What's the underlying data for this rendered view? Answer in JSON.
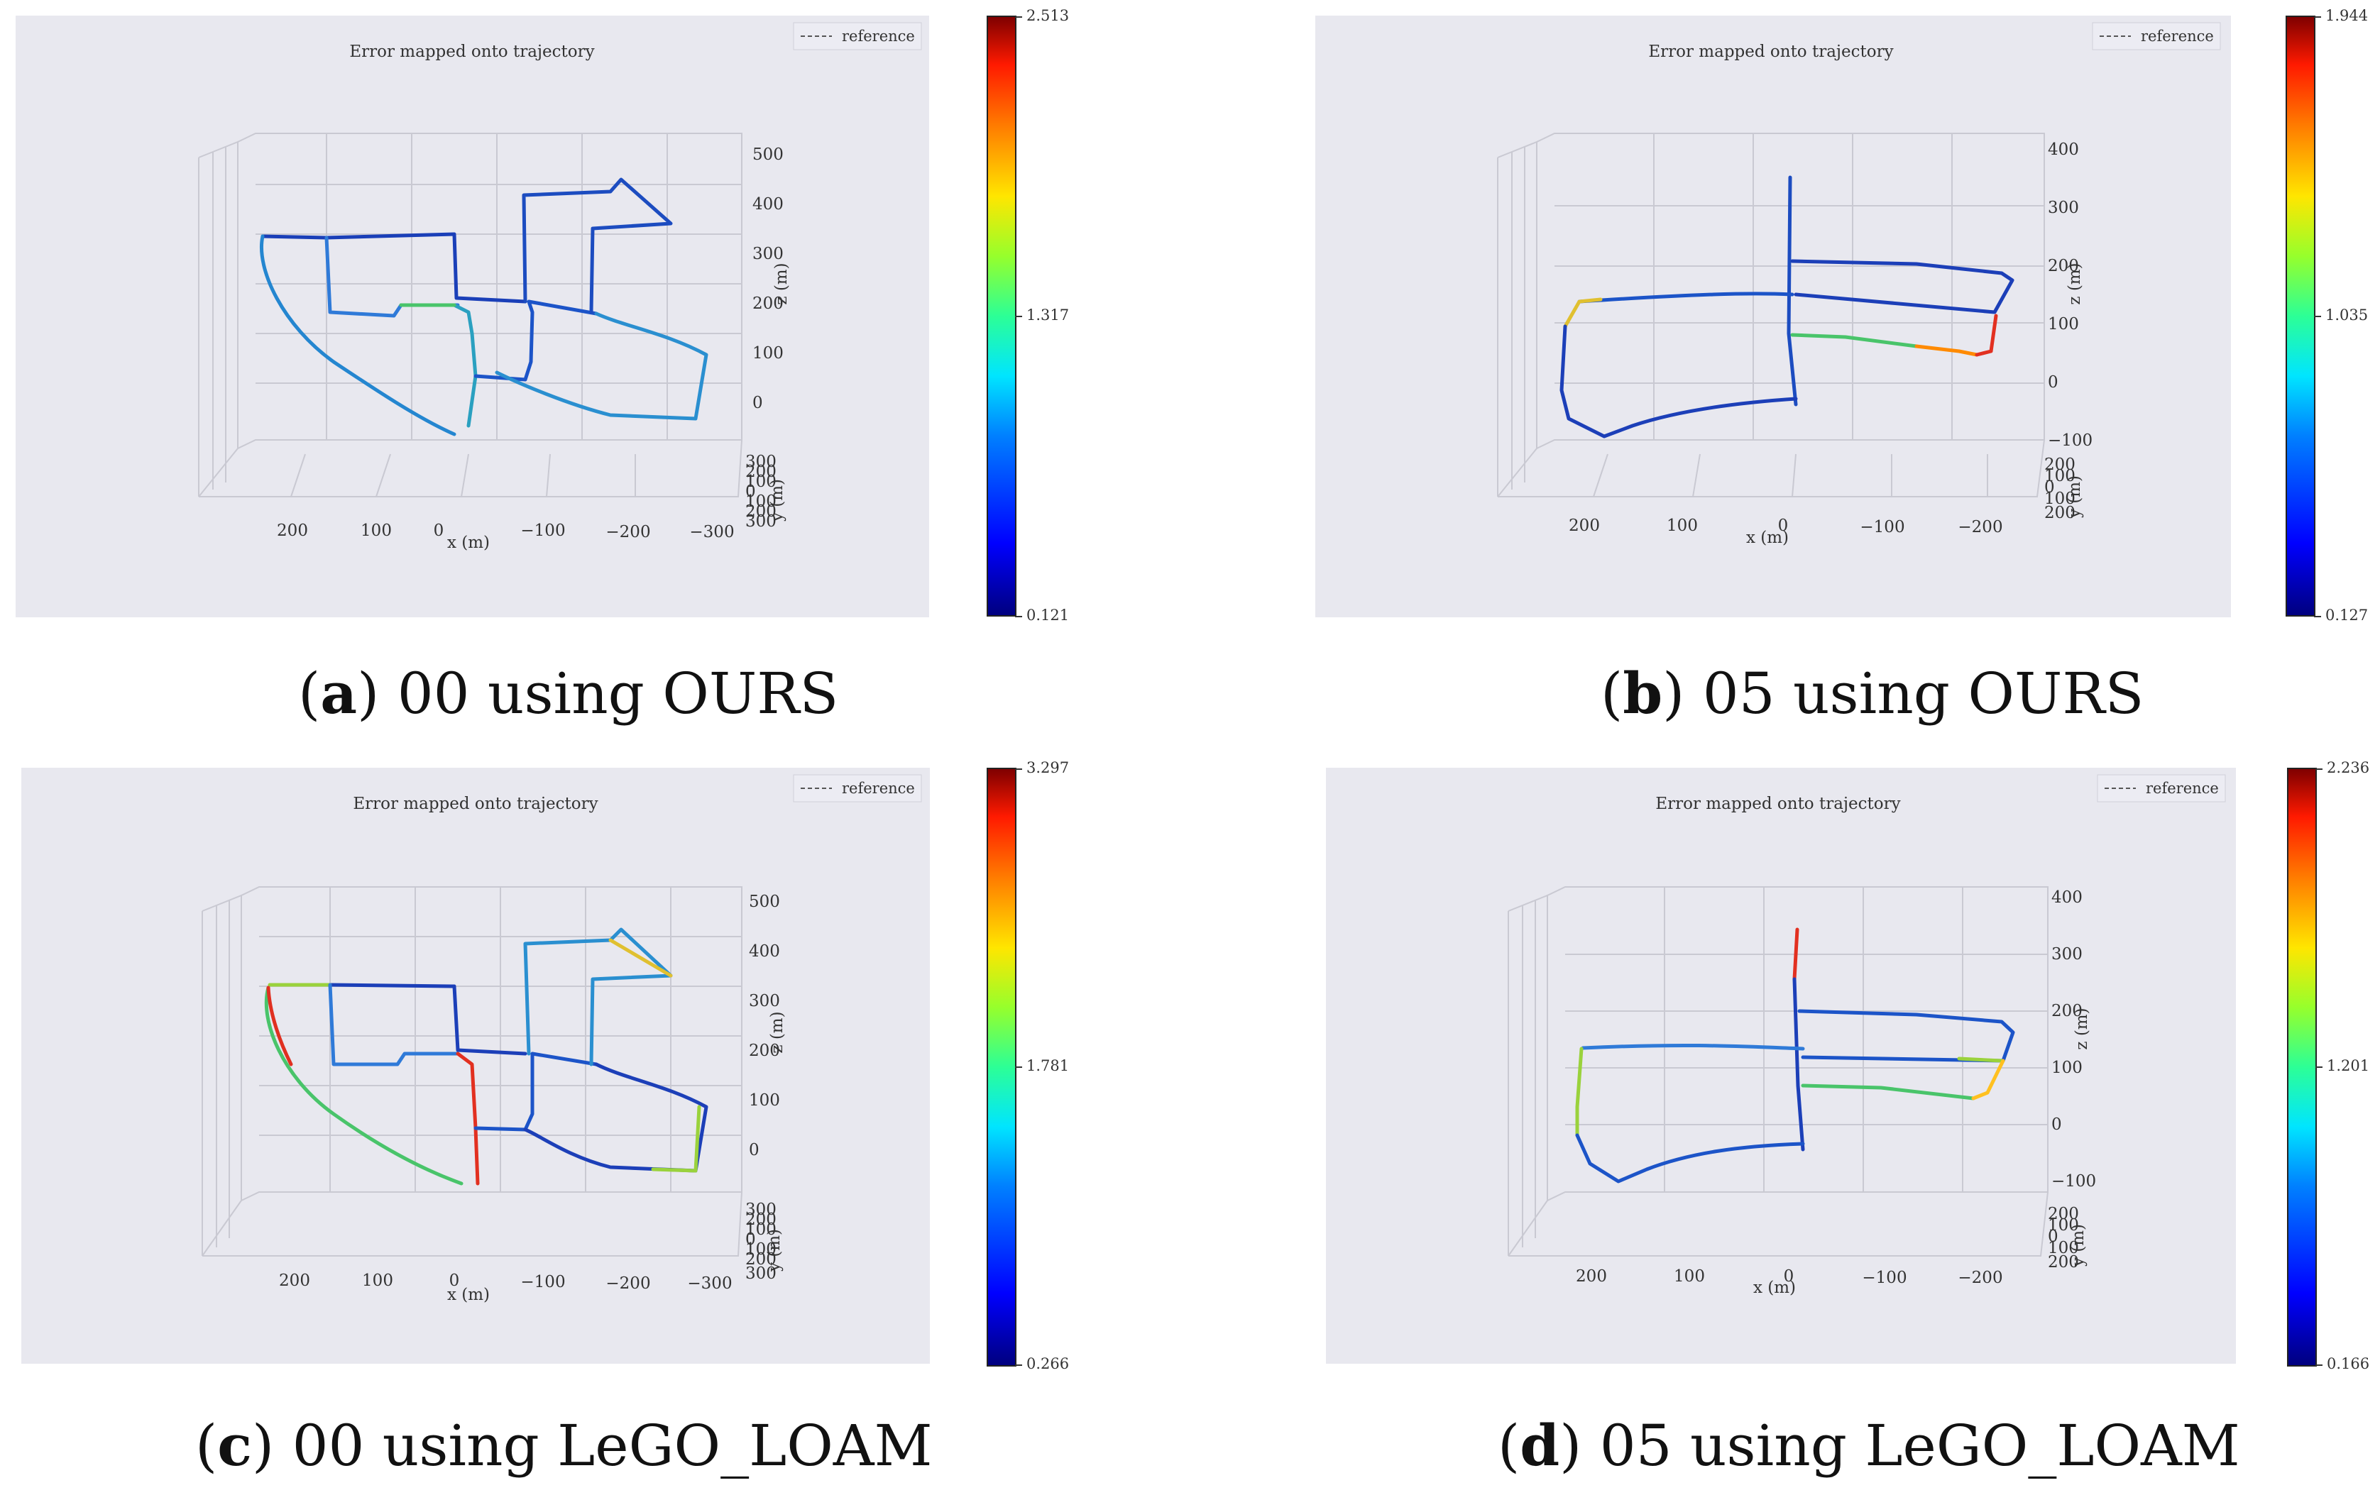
{
  "chart_data": [
    {
      "id": "a",
      "type": "line",
      "title": "Error mapped onto trajectory",
      "legend": "reference",
      "xlabel": "x (m)",
      "ylabel": "y (m)",
      "zlabel": "z (m)",
      "x_ticks": [
        "200",
        "100",
        "0",
        "−100",
        "−200",
        "−300"
      ],
      "z_ticks": [
        "500",
        "400",
        "300",
        "200",
        "100",
        "0"
      ],
      "y_ticks": [
        "300",
        "200",
        "100",
        "0",
        "100",
        "200",
        "300"
      ],
      "colorbar": {
        "min": "0.121",
        "mid": "1.317",
        "max": "2.513"
      },
      "caption": {
        "letter": "a",
        "text": ") 00 using OURS"
      }
    },
    {
      "id": "b",
      "type": "line",
      "title": "Error mapped onto trajectory",
      "legend": "reference",
      "xlabel": "x (m)",
      "ylabel": "y (m)",
      "zlabel": "z (m)",
      "x_ticks": [
        "200",
        "100",
        "0",
        "−100",
        "−200"
      ],
      "z_ticks": [
        "400",
        "300",
        "200",
        "100",
        "0",
        "−100"
      ],
      "y_ticks": [
        "200",
        "100",
        "0",
        "100",
        "200"
      ],
      "colorbar": {
        "min": "0.127",
        "mid": "1.035",
        "max": "1.944"
      },
      "caption": {
        "letter": "b",
        "text": ") 05 using OURS"
      }
    },
    {
      "id": "c",
      "type": "line",
      "title": "Error mapped onto trajectory",
      "legend": "reference",
      "xlabel": "x (m)",
      "ylabel": "y (m)",
      "zlabel": "z (m)",
      "x_ticks": [
        "200",
        "100",
        "0",
        "−100",
        "−200",
        "−300"
      ],
      "z_ticks": [
        "500",
        "400",
        "300",
        "200",
        "100",
        "0"
      ],
      "y_ticks": [
        "300",
        "200",
        "100",
        "0",
        "100",
        "200",
        "300"
      ],
      "colorbar": {
        "min": "0.266",
        "mid": "1.781",
        "max": "3.297"
      },
      "caption": {
        "letter": "c",
        "text": ") 00 using LeGO_LOAM"
      }
    },
    {
      "id": "d",
      "type": "line",
      "title": "Error mapped onto trajectory",
      "legend": "reference",
      "xlabel": "x (m)",
      "ylabel": "y (m)",
      "zlabel": "z (m)",
      "x_ticks": [
        "200",
        "100",
        "0",
        "−100",
        "−200"
      ],
      "z_ticks": [
        "400",
        "300",
        "200",
        "100",
        "0",
        "−100"
      ],
      "y_ticks": [
        "200",
        "100",
        "0",
        "100",
        "200"
      ],
      "colorbar": {
        "min": "0.166",
        "mid": "1.201",
        "max": "2.236"
      },
      "caption": {
        "letter": "d",
        "text": ") 05 using LeGO_LOAM"
      }
    }
  ]
}
